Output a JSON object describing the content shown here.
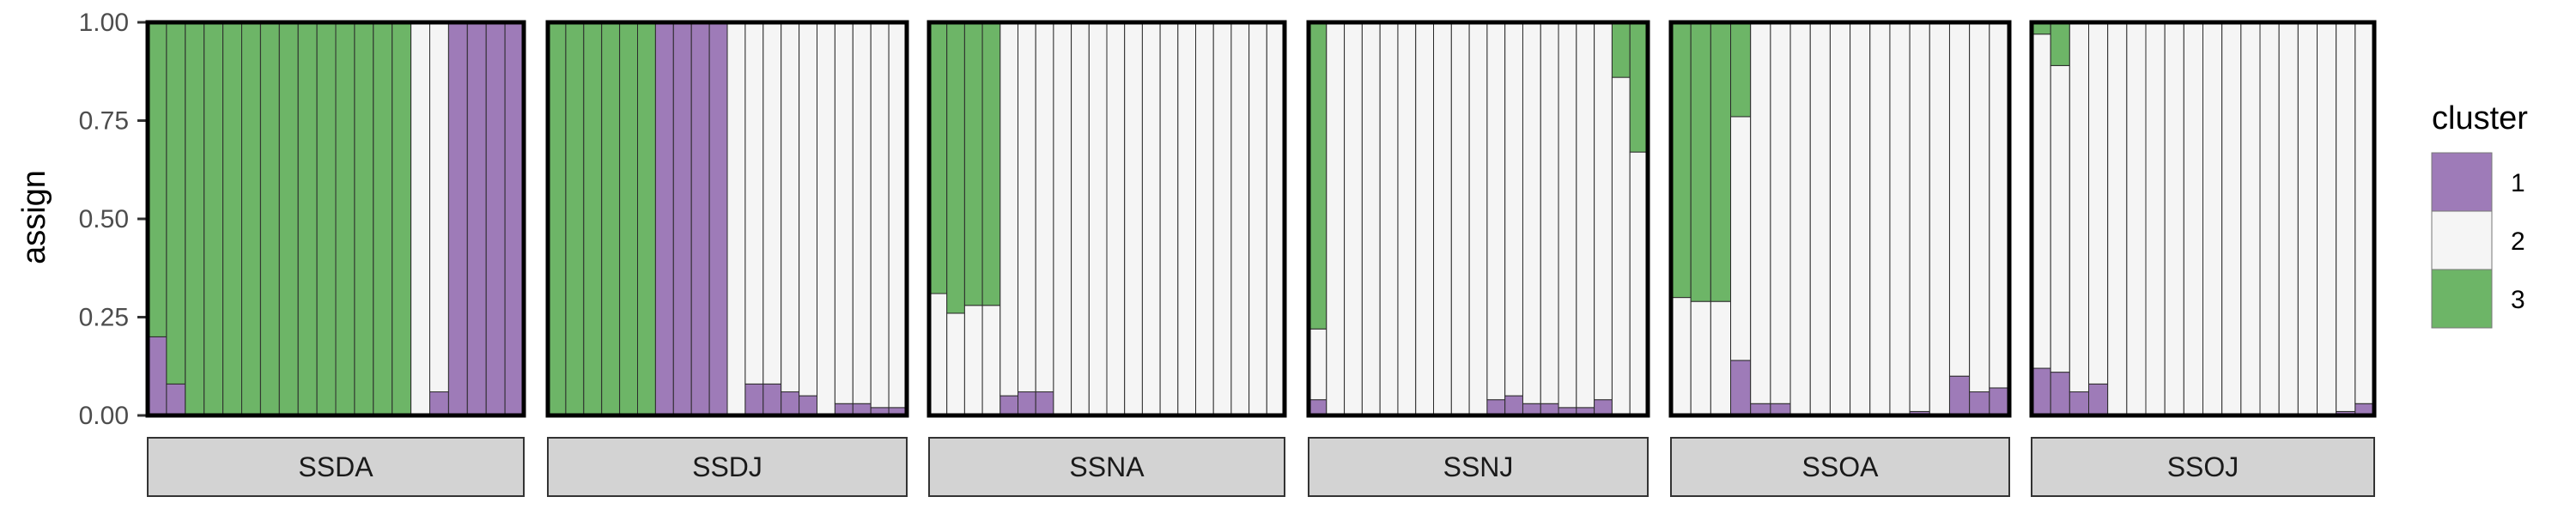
{
  "chart_data": {
    "type": "bar",
    "subtype": "stacked-100-faceted",
    "ylabel": "assign",
    "ylim": [
      0,
      1
    ],
    "yticks": [
      0,
      0.25,
      0.5,
      0.75,
      1
    ],
    "ytick_labels": [
      "0.00",
      "0.25",
      "0.50",
      "0.75",
      "1.00"
    ],
    "legend": {
      "title": "cluster",
      "position": "right",
      "items": [
        {
          "label": "1",
          "color": "#9E7BB8"
        },
        {
          "label": "2",
          "color": "#F5F5F5"
        },
        {
          "label": "3",
          "color": "#6DB567"
        }
      ]
    },
    "facets": [
      {
        "label": "SSDA",
        "individuals": [
          [
            0.2,
            0.0,
            0.8
          ],
          [
            0.08,
            0.0,
            0.92
          ],
          [
            0,
            0,
            1
          ],
          [
            0,
            0,
            1
          ],
          [
            0,
            0,
            1
          ],
          [
            0,
            0,
            1
          ],
          [
            0,
            0,
            1
          ],
          [
            0,
            0,
            1
          ],
          [
            0,
            0,
            1
          ],
          [
            0,
            0,
            1
          ],
          [
            0,
            0,
            1
          ],
          [
            0,
            0,
            1
          ],
          [
            0,
            0,
            1
          ],
          [
            0,
            0,
            1
          ],
          [
            0,
            1,
            0
          ],
          [
            0.06,
            0.94,
            0.0
          ],
          [
            1,
            0,
            0
          ],
          [
            1,
            0,
            0
          ],
          [
            1,
            0,
            0
          ],
          [
            1,
            0,
            0
          ]
        ]
      },
      {
        "label": "SSDJ",
        "individuals": [
          [
            0,
            0,
            1
          ],
          [
            0,
            0,
            1
          ],
          [
            0,
            0,
            1
          ],
          [
            0,
            0,
            1
          ],
          [
            0,
            0,
            1
          ],
          [
            0,
            0,
            1
          ],
          [
            1,
            0,
            0
          ],
          [
            1,
            0,
            0
          ],
          [
            1,
            0,
            0
          ],
          [
            1,
            0,
            0
          ],
          [
            0,
            1,
            0
          ],
          [
            0.08,
            0.92,
            0
          ],
          [
            0.08,
            0.92,
            0
          ],
          [
            0.06,
            0.94,
            0
          ],
          [
            0.05,
            0.95,
            0
          ],
          [
            0,
            1,
            0
          ],
          [
            0.03,
            0.97,
            0
          ],
          [
            0.03,
            0.97,
            0
          ],
          [
            0.02,
            0.98,
            0
          ],
          [
            0.02,
            0.98,
            0
          ]
        ]
      },
      {
        "label": "SSNA",
        "individuals": [
          [
            0,
            0.31,
            0.69
          ],
          [
            0,
            0.26,
            0.74
          ],
          [
            0,
            0.28,
            0.72
          ],
          [
            0,
            0.28,
            0.72
          ],
          [
            0.05,
            0.95,
            0
          ],
          [
            0.06,
            0.94,
            0
          ],
          [
            0.06,
            0.94,
            0
          ],
          [
            0,
            1,
            0
          ],
          [
            0,
            1,
            0
          ],
          [
            0,
            1,
            0
          ],
          [
            0,
            1,
            0
          ],
          [
            0,
            1,
            0
          ],
          [
            0,
            1,
            0
          ],
          [
            0,
            1,
            0
          ],
          [
            0,
            1,
            0
          ],
          [
            0,
            1,
            0
          ],
          [
            0,
            1,
            0
          ],
          [
            0,
            1,
            0
          ],
          [
            0,
            1,
            0
          ],
          [
            0,
            1,
            0
          ]
        ]
      },
      {
        "label": "SSNJ",
        "individuals": [
          [
            0.04,
            0.18,
            0.78
          ],
          [
            0,
            1,
            0
          ],
          [
            0,
            1,
            0
          ],
          [
            0,
            1,
            0
          ],
          [
            0,
            1,
            0
          ],
          [
            0,
            1,
            0
          ],
          [
            0,
            1,
            0
          ],
          [
            0,
            1,
            0
          ],
          [
            0,
            1,
            0
          ],
          [
            0,
            1,
            0
          ],
          [
            0.04,
            0.96,
            0
          ],
          [
            0.05,
            0.95,
            0
          ],
          [
            0.03,
            0.97,
            0
          ],
          [
            0.03,
            0.97,
            0
          ],
          [
            0.02,
            0.98,
            0
          ],
          [
            0.02,
            0.98,
            0
          ],
          [
            0.04,
            0.96,
            0
          ],
          [
            0,
            0.86,
            0.14
          ],
          [
            0,
            0.67,
            0.33
          ]
        ]
      },
      {
        "label": "SSOA",
        "individuals": [
          [
            0,
            0.3,
            0.7
          ],
          [
            0,
            0.29,
            0.71
          ],
          [
            0,
            0.29,
            0.71
          ],
          [
            0.14,
            0.62,
            0.24
          ],
          [
            0.03,
            0.97,
            0
          ],
          [
            0.03,
            0.97,
            0
          ],
          [
            0,
            1,
            0
          ],
          [
            0,
            1,
            0
          ],
          [
            0,
            1,
            0
          ],
          [
            0,
            1,
            0
          ],
          [
            0,
            1,
            0
          ],
          [
            0,
            1,
            0
          ],
          [
            0.01,
            0.99,
            0
          ],
          [
            0,
            1,
            0
          ],
          [
            0.1,
            0.9,
            0
          ],
          [
            0.06,
            0.94,
            0
          ],
          [
            0.07,
            0.93,
            0
          ]
        ]
      },
      {
        "label": "SSOJ",
        "individuals": [
          [
            0.12,
            0.85,
            0.03
          ],
          [
            0.11,
            0.78,
            0.11
          ],
          [
            0.06,
            0.94,
            0
          ],
          [
            0.08,
            0.92,
            0
          ],
          [
            0,
            1,
            0
          ],
          [
            0,
            1,
            0
          ],
          [
            0,
            1,
            0
          ],
          [
            0,
            1,
            0
          ],
          [
            0,
            1,
            0
          ],
          [
            0,
            1,
            0
          ],
          [
            0,
            1,
            0
          ],
          [
            0,
            1,
            0
          ],
          [
            0,
            1,
            0
          ],
          [
            0,
            1,
            0
          ],
          [
            0,
            1,
            0
          ],
          [
            0,
            1,
            0
          ],
          [
            0.01,
            0.99,
            0
          ],
          [
            0.03,
            0.97,
            0
          ]
        ]
      }
    ]
  }
}
